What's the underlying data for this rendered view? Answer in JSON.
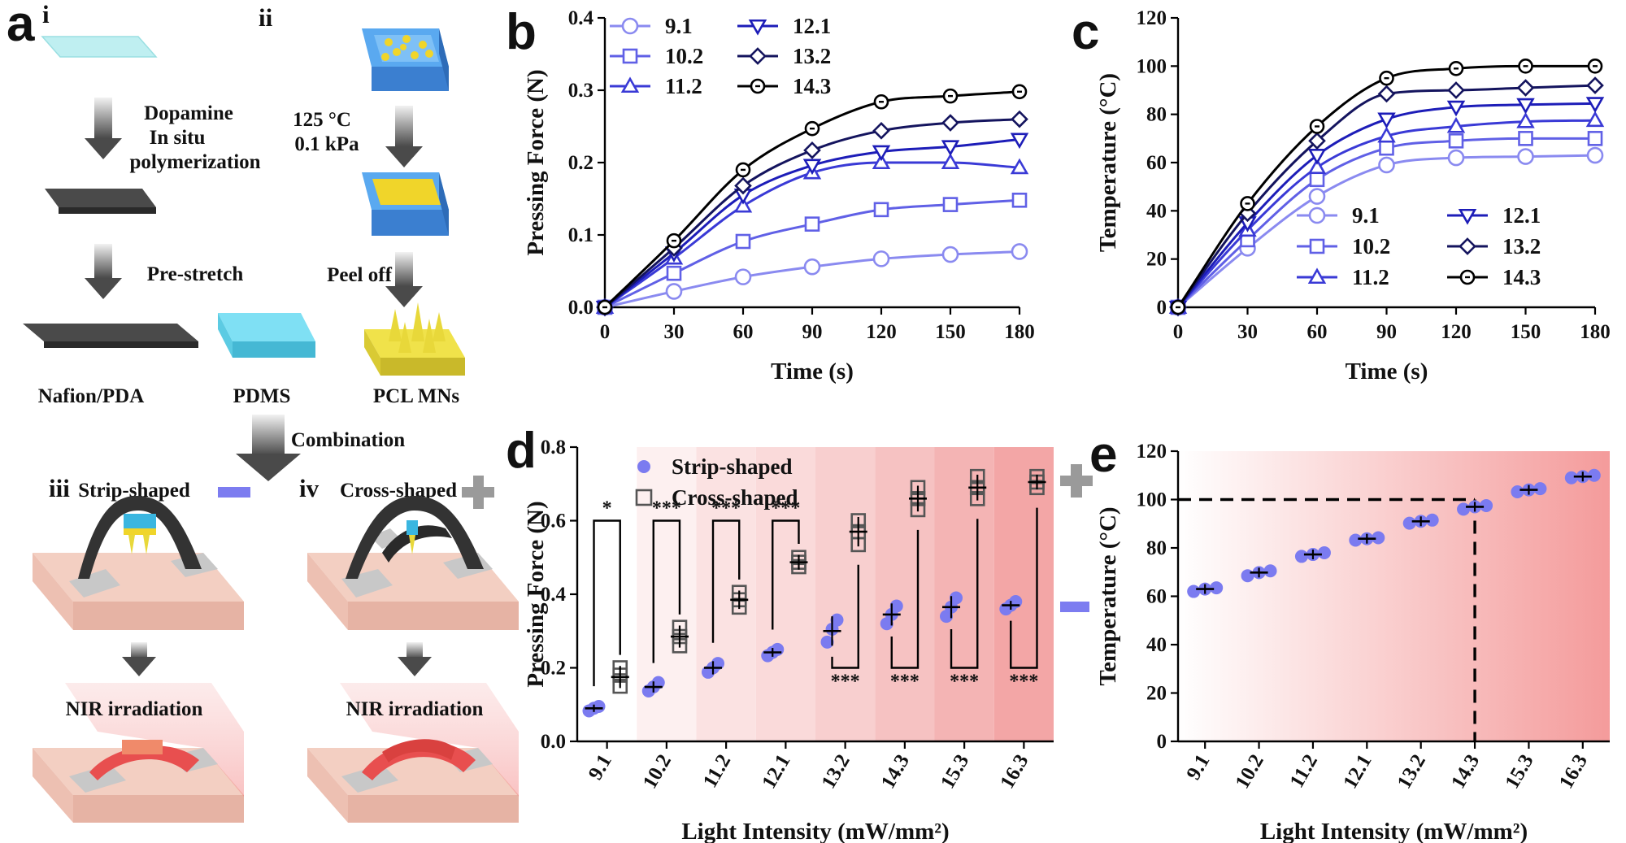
{
  "panel_letters": {
    "a": "a",
    "b": "b",
    "c": "c",
    "d": "d",
    "e": "e"
  },
  "schematic": {
    "roman": [
      "i",
      "ii",
      "iii",
      "iv"
    ],
    "dopamine": "Dopamine",
    "in_situ": "In situ",
    "polymerization": "polymerization",
    "temp": "125 °C",
    "pressure": "0.1 kPa",
    "prestretch": "Pre-stretch",
    "peel_off": "Peel off",
    "nafion": "Nafion/PDA",
    "pdms": "PDMS",
    "pcl": "PCL MNs",
    "combination": "Combination",
    "strip_shaped": "Strip-shaped",
    "cross_shaped": "Cross-shaped",
    "nir1": "NIR irradiation",
    "nir2": "NIR irradiation"
  },
  "chart_data": [
    {
      "id": "b",
      "type": "line",
      "xlabel": "Time (s)",
      "ylabel": "Pressing Force (N)",
      "xlim": [
        0,
        180
      ],
      "ylim": [
        0,
        0.4
      ],
      "xticks": [
        "0",
        "30",
        "60",
        "90",
        "120",
        "150",
        "180"
      ],
      "yticks": [
        "0.0",
        "0.1",
        "0.2",
        "0.3",
        "0.4"
      ],
      "x": [
        0,
        30,
        60,
        90,
        120,
        150,
        180
      ],
      "legend_position": "top-left",
      "series": [
        {
          "name": "9.1",
          "marker": "circle",
          "color": "#8a8af0",
          "values": [
            0,
            0.022,
            0.042,
            0.056,
            0.067,
            0.073,
            0.077
          ]
        },
        {
          "name": "10.2",
          "marker": "square",
          "color": "#6060e6",
          "values": [
            0,
            0.047,
            0.091,
            0.115,
            0.135,
            0.142,
            0.148
          ]
        },
        {
          "name": "11.2",
          "marker": "triangle-up",
          "color": "#3a3ad6",
          "values": [
            0,
            0.068,
            0.14,
            0.186,
            0.2,
            0.2,
            0.193
          ]
        },
        {
          "name": "12.1",
          "marker": "triangle-down",
          "color": "#1d1db8",
          "values": [
            0,
            0.075,
            0.155,
            0.196,
            0.215,
            0.222,
            0.232
          ]
        },
        {
          "name": "13.2",
          "marker": "diamond",
          "color": "#14145e",
          "values": [
            0,
            0.082,
            0.168,
            0.217,
            0.244,
            0.255,
            0.26
          ]
        },
        {
          "name": "14.3",
          "marker": "circle-dot",
          "color": "#000000",
          "values": [
            0,
            0.092,
            0.19,
            0.247,
            0.284,
            0.292,
            0.298
          ]
        }
      ]
    },
    {
      "id": "c",
      "type": "line",
      "xlabel": "Time (s)",
      "ylabel": "Temperature (°C)",
      "xlim": [
        0,
        180
      ],
      "ylim": [
        0,
        120
      ],
      "xticks": [
        "0",
        "30",
        "60",
        "90",
        "120",
        "150",
        "180"
      ],
      "yticks": [
        "0",
        "20",
        "40",
        "60",
        "80",
        "100",
        "120"
      ],
      "x": [
        0,
        30,
        60,
        90,
        120,
        150,
        180
      ],
      "legend_position": "bottom-right",
      "series": [
        {
          "name": "9.1",
          "marker": "circle",
          "color": "#8a8af0",
          "values": [
            0,
            24.5,
            46,
            59,
            62,
            62.5,
            63
          ]
        },
        {
          "name": "10.2",
          "marker": "square",
          "color": "#6060e6",
          "values": [
            0,
            28,
            53,
            66,
            69,
            70,
            70
          ]
        },
        {
          "name": "11.2",
          "marker": "triangle-up",
          "color": "#3a3ad6",
          "values": [
            0,
            32,
            58,
            71,
            75,
            77,
            77.5
          ]
        },
        {
          "name": "12.1",
          "marker": "triangle-down",
          "color": "#1d1db8",
          "values": [
            0,
            35,
            63,
            78,
            83,
            84,
            84.5
          ]
        },
        {
          "name": "13.2",
          "marker": "diamond",
          "color": "#14145e",
          "values": [
            0,
            39,
            69,
            88.5,
            90,
            91,
            92
          ]
        },
        {
          "name": "14.3",
          "marker": "circle-dot",
          "color": "#000000",
          "values": [
            0,
            43,
            75,
            95,
            99,
            100,
            100
          ]
        }
      ]
    },
    {
      "id": "d",
      "type": "scatter",
      "xlabel": "Light Intensity (mW/mm²)",
      "ylabel": "Pressing Force (N)",
      "ylim": [
        0,
        0.8
      ],
      "yticks": [
        "0.0",
        "0.2",
        "0.4",
        "0.6",
        "0.8"
      ],
      "categories": [
        "9.1",
        "10.2",
        "11.2",
        "12.1",
        "13.2",
        "14.3",
        "15.3",
        "16.3"
      ],
      "legend_position": "top-left",
      "series": [
        {
          "name": "Strip-shaped",
          "marker": "filled-circle",
          "color": "#7b7bf0",
          "mean": [
            0.09,
            0.148,
            0.2,
            0.242,
            0.3,
            0.345,
            0.365,
            0.37
          ],
          "sd": [
            0.01,
            0.015,
            0.018,
            0.012,
            0.04,
            0.03,
            0.03,
            0.012
          ],
          "points": [
            [
              0.083,
              0.09,
              0.095
            ],
            [
              0.137,
              0.148,
              0.16
            ],
            [
              0.188,
              0.2,
              0.212
            ],
            [
              0.233,
              0.242,
              0.25
            ],
            [
              0.27,
              0.305,
              0.33
            ],
            [
              0.32,
              0.345,
              0.368
            ],
            [
              0.34,
              0.365,
              0.39
            ],
            [
              0.36,
              0.37,
              0.38
            ]
          ]
        },
        {
          "name": "Cross-shaped",
          "marker": "open-square",
          "color": "#555555",
          "mean": [
            0.175,
            0.285,
            0.385,
            0.487,
            0.57,
            0.66,
            0.69,
            0.705
          ],
          "sd": [
            0.03,
            0.03,
            0.025,
            0.02,
            0.04,
            0.035,
            0.035,
            0.02
          ],
          "points": [
            [
              0.15,
              0.18,
              0.2
            ],
            [
              0.26,
              0.285,
              0.31
            ],
            [
              0.365,
              0.385,
              0.405
            ],
            [
              0.475,
              0.487,
              0.5
            ],
            [
              0.535,
              0.57,
              0.6
            ],
            [
              0.63,
              0.66,
              0.69
            ],
            [
              0.66,
              0.69,
              0.72
            ],
            [
              0.69,
              0.705,
              0.72
            ]
          ]
        }
      ],
      "significance": [
        "*",
        "***",
        "***",
        "***",
        "***",
        "***",
        "***",
        "***"
      ],
      "background_gradient": "white-to-red"
    },
    {
      "id": "e",
      "type": "scatter",
      "xlabel": "Light Intensity (mW/mm²)",
      "ylabel": "Temperature (°C)",
      "ylim": [
        0,
        120
      ],
      "yticks": [
        "0",
        "20",
        "40",
        "60",
        "80",
        "100",
        "120"
      ],
      "categories": [
        "9.1",
        "10.2",
        "11.2",
        "12.1",
        "13.2",
        "14.3",
        "15.3",
        "16.3"
      ],
      "series": [
        {
          "name": "",
          "marker": "filled-circle",
          "color": "#7b7bf0",
          "mean": [
            63,
            69.8,
            77.3,
            83.8,
            91,
            97,
            104,
            109.5
          ],
          "points": [
            [
              62,
              63,
              63.5
            ],
            [
              68.5,
              69.8,
              70.5
            ],
            [
              76.5,
              77.3,
              78
            ],
            [
              83.2,
              83.8,
              84.2
            ],
            [
              90.2,
              91,
              91.5
            ],
            [
              96,
              97,
              97.5
            ],
            [
              103.2,
              104,
              104.5
            ],
            [
              109,
              109.5,
              110
            ]
          ]
        }
      ],
      "reference_line": {
        "y": 100,
        "x_category": "14.3"
      },
      "background_gradient": "white-to-red"
    }
  ]
}
